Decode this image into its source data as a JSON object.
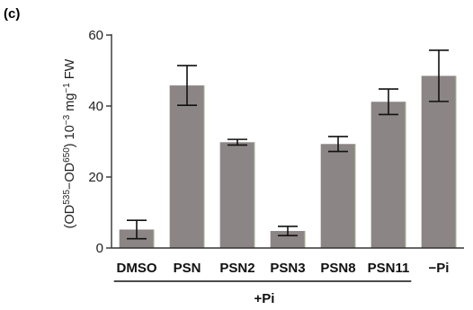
{
  "panel_label": "(c)",
  "colors": {
    "bar": "#8c8585",
    "axis": "#333333",
    "error": "#111111",
    "bar_edge": "#9fb08a"
  },
  "chart_data": {
    "type": "bar",
    "categories": [
      "DMSO",
      "PSN",
      "PSN2",
      "PSN3",
      "PSN8",
      "PSN11",
      "−Pi"
    ],
    "values": [
      5.2,
      45.8,
      29.8,
      4.8,
      29.3,
      41.2,
      48.5
    ],
    "error": [
      2.6,
      5.6,
      0.8,
      1.3,
      2.1,
      3.6,
      7.2
    ],
    "ylim": [
      0,
      60
    ],
    "yticks": [
      0,
      20,
      40,
      60
    ],
    "ylabel": {
      "part1": "(OD",
      "sup1": "535",
      "part2": "−OD",
      "sup2": "650",
      "part3": ") 10",
      "sup3": "−3",
      "part4": " mg",
      "sup4": "−1",
      "part5": " FW"
    },
    "group": {
      "label": "+Pi",
      "from_index": 0,
      "to_index": 5
    },
    "grid": false,
    "legend": "none"
  }
}
